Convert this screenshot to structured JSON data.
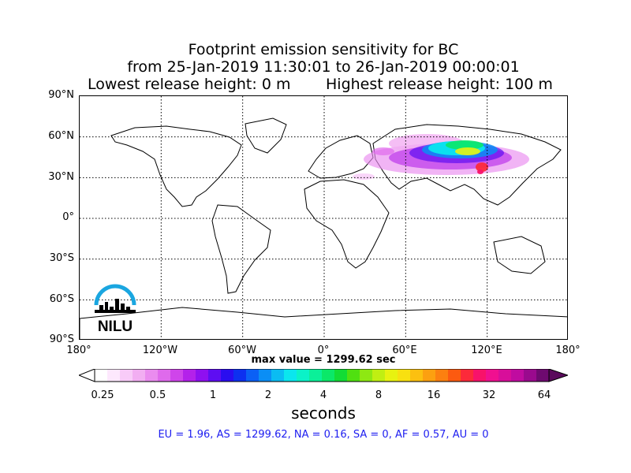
{
  "title": {
    "line1": "Footprint emission sensitivity for BC",
    "line2": "from 25-Jan-2019 11:30:01 to 26-Jan-2019 00:00:01",
    "lowest": "Lowest release height: 0 m",
    "highest": "Highest release height: 100 m"
  },
  "map": {
    "lat_labels": [
      "90°N",
      "60°N",
      "30°N",
      "0°",
      "30°S",
      "60°S",
      "90°S"
    ],
    "lon_labels": [
      "180°",
      "120°W",
      "60°W",
      "0°",
      "60°E",
      "120°E",
      "180°"
    ],
    "logo_text": "NILU",
    "logo_color": "#1aa6e0"
  },
  "max_value": "max value = 1299.62 sec",
  "colorbar": {
    "ticks": [
      "0.25",
      "0.5",
      "1",
      "2",
      "4",
      "8",
      "16",
      "32",
      "64"
    ],
    "unit": "seconds",
    "colors": [
      "#ffffff",
      "#fde8fd",
      "#f8cbf8",
      "#f2aef2",
      "#ea8cef",
      "#df6aec",
      "#cf45ea",
      "#b421ea",
      "#8f10f0",
      "#5e0df2",
      "#2a0df0",
      "#0d30f0",
      "#0b60f5",
      "#0b8ef5",
      "#0bbcf2",
      "#0be6ee",
      "#0bf2c8",
      "#0bf099",
      "#0be868",
      "#12dc35",
      "#50e010",
      "#8ee812",
      "#c0ef12",
      "#e8f210",
      "#f8e010",
      "#fcc010",
      "#fca010",
      "#fc8010",
      "#fc5a10",
      "#fc2a3a",
      "#f8126a",
      "#f01090",
      "#d80e9a",
      "#c00ca0",
      "#9a0a8e",
      "#6e0a70"
    ]
  },
  "stats": "EU = 1.96,  AS = 1299.62,  NA = 0.16,  SA = 0,  AF = 0.57,  AU = 0"
}
